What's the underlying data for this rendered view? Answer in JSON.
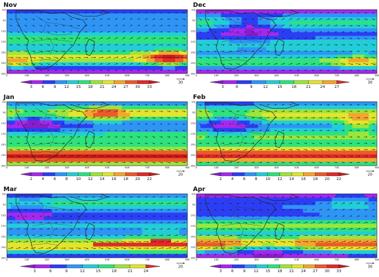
{
  "figure": {
    "panels": [
      {
        "month": "Nov",
        "ref_vector": "30",
        "colorbar_ticks": [
          "3",
          "6",
          "9",
          "12",
          "15",
          "18",
          "21",
          "24",
          "27",
          "30",
          "33"
        ],
        "colorbar_colors": [
          "#8a1ccc",
          "#a628ee",
          "#2c3ef5",
          "#2e95f6",
          "#23cdd8",
          "#2ee27e",
          "#9ce63a",
          "#e3e42e",
          "#f4a52e",
          "#ec5a2c",
          "#e02a2a",
          "#cc1a1a"
        ],
        "field": {
          "base": 2,
          "bands": [
            [
              0.18,
              0.16,
              10
            ],
            [
              0.46,
              0.12,
              14
            ],
            [
              0.75,
              0.14,
              20
            ]
          ],
          "blobs": [
            [
              0.9,
              0.75,
              0.12,
              0.12,
              12
            ],
            [
              0.05,
              0.85,
              0.1,
              0.1,
              8
            ]
          ]
        }
      },
      {
        "month": "Dec",
        "ref_vector": "30",
        "colorbar_ticks": [
          "3",
          "6",
          "9",
          "12",
          "15",
          "18",
          "21",
          "24",
          "27"
        ],
        "colorbar_colors": [
          "#8a1ccc",
          "#a628ee",
          "#2c3ef5",
          "#2e95f6",
          "#23cdd8",
          "#2ee27e",
          "#9ce63a",
          "#e3e42e",
          "#f4a52e",
          "#e02a2a"
        ],
        "field": {
          "base": 2,
          "bands": [
            [
              0.2,
              0.15,
              14
            ],
            [
              0.55,
              0.13,
              12
            ],
            [
              0.82,
              0.12,
              16
            ]
          ],
          "blobs": [
            [
              0.3,
              0.25,
              0.15,
              0.18,
              -8
            ],
            [
              0.9,
              0.8,
              0.12,
              0.1,
              8
            ]
          ]
        }
      },
      {
        "month": "Jan",
        "ref_vector": "20",
        "colorbar_ticks": [
          "2",
          "4",
          "6",
          "8",
          "10",
          "12",
          "14",
          "16",
          "18",
          "20",
          "22"
        ],
        "colorbar_colors": [
          "#8a1ccc",
          "#a628ee",
          "#2c3ef5",
          "#2e95f6",
          "#23cdd8",
          "#2ee27e",
          "#9ce63a",
          "#e3e42e",
          "#f4a52e",
          "#ec5a2c",
          "#e02a2a",
          "#cc1a1a"
        ],
        "field": {
          "base": 3,
          "bands": [
            [
              0.18,
              0.14,
              12
            ],
            [
              0.55,
              0.13,
              8
            ],
            [
              0.85,
              0.14,
              19
            ]
          ],
          "blobs": [
            [
              0.15,
              0.3,
              0.15,
              0.18,
              -6
            ],
            [
              0.55,
              0.18,
              0.12,
              0.1,
              5
            ]
          ]
        }
      },
      {
        "month": "Feb",
        "ref_vector": "20",
        "colorbar_ticks": [
          "2",
          "4",
          "6",
          "8",
          "10",
          "12",
          "14",
          "16",
          "18",
          "20",
          "22"
        ],
        "colorbar_colors": [
          "#8a1ccc",
          "#a628ee",
          "#2c3ef5",
          "#2e95f6",
          "#23cdd8",
          "#2ee27e",
          "#9ce63a",
          "#e3e42e",
          "#f4a52e",
          "#ec5a2c",
          "#e02a2a",
          "#cc1a1a"
        ],
        "field": {
          "base": 3,
          "bands": [
            [
              0.2,
              0.15,
              12
            ],
            [
              0.55,
              0.13,
              9
            ],
            [
              0.84,
              0.14,
              18
            ]
          ],
          "blobs": [
            [
              0.18,
              0.3,
              0.15,
              0.18,
              -6
            ],
            [
              0.9,
              0.35,
              0.1,
              0.12,
              6
            ]
          ]
        }
      },
      {
        "month": "Mar",
        "ref_vector": "20",
        "colorbar_ticks": [
          "3",
          "6",
          "9",
          "12",
          "15",
          "18",
          "21",
          "24"
        ],
        "colorbar_colors": [
          "#8a1ccc",
          "#a628ee",
          "#2c3ef5",
          "#2e95f6",
          "#23cdd8",
          "#2ee27e",
          "#9ce63a",
          "#e3e42e",
          "#e02a2a"
        ],
        "field": {
          "base": 2,
          "bands": [
            [
              0.15,
              0.15,
              14
            ],
            [
              0.5,
              0.12,
              10
            ],
            [
              0.8,
              0.15,
              22
            ]
          ],
          "blobs": [
            [
              0.12,
              0.22,
              0.12,
              0.18,
              -4
            ],
            [
              0.85,
              0.75,
              0.15,
              0.15,
              4
            ]
          ]
        }
      },
      {
        "month": "Apr",
        "ref_vector": "30",
        "colorbar_ticks": [
          "3",
          "6",
          "9",
          "12",
          "15",
          "18",
          "21",
          "24",
          "27",
          "30",
          "33"
        ],
        "colorbar_colors": [
          "#8a1ccc",
          "#a628ee",
          "#2c3ef5",
          "#2e95f6",
          "#23cdd8",
          "#2ee27e",
          "#9ce63a",
          "#e3e42e",
          "#f4a52e",
          "#ec5a2c",
          "#e02a2a",
          "#cc1a1a"
        ],
        "field": {
          "base": 3,
          "bands": [
            [
              0.22,
              0.16,
              6
            ],
            [
              0.5,
              0.12,
              16
            ],
            [
              0.78,
              0.13,
              26
            ]
          ],
          "blobs": [
            [
              0.85,
              0.15,
              0.15,
              0.12,
              6
            ],
            [
              0.4,
              0.85,
              0.2,
              0.12,
              -10
            ]
          ]
        }
      }
    ],
    "lat_labels": [
      "EQ",
      "5S",
      "10S",
      "15S",
      "20S",
      "25S",
      "30S"
    ],
    "lon_labels": [
      "0",
      "10E",
      "20E",
      "30E",
      "40E",
      "50E",
      "60E",
      "70E",
      "80E",
      "90E"
    ]
  }
}
